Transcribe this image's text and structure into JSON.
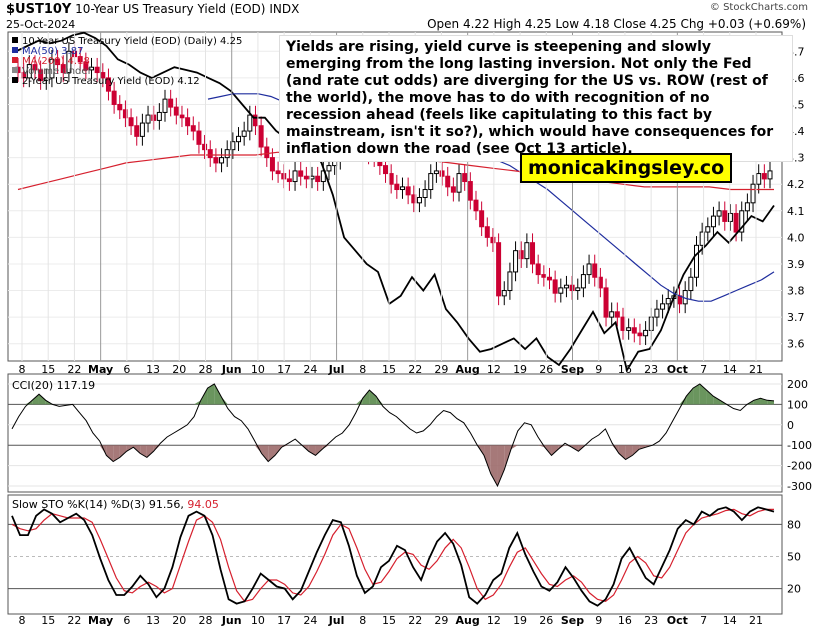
{
  "header": {
    "symbol": "$UST10Y",
    "name": "10-Year US Treasury Yield (EOD)",
    "exchange": "INDX",
    "date": "25-Oct-2024",
    "quote": "Open 4.22  High 4.25  Low 4.18  Close 4.25  Chg +0.03 (+0.69%)",
    "source": "© StockCharts.com"
  },
  "annotation": "Yields are rising, yield curve is steepening and slowly emerging from the long lasting inversion. Not only the Fed (and rate cut odds) are diverging for the US vs. ROW (rest of the world), the move has to do with recognition of no recession ahead (feels like capitulating to this fact by mainstream, isn't it so?), which would have consequences for inflation down the road (see Oct 13 article).",
  "watermark": "monicakingsley.co",
  "colors": {
    "up_candle": "#000000",
    "down_candle": "#cc0033",
    "ma50": "#1f2d9e",
    "ma200": "#d6202e",
    "cci_fill": "#5a8a4c",
    "cci_neg_fill": "#9c6a6a",
    "slowd": "#d6202e"
  },
  "chart_data": [
    {
      "type": "candlestick",
      "title": "10-Year US Treasury Yield (EOD) (Daily) 4.25",
      "legend": [
        {
          "name": "10-Year US Treasury Yield (EOD) (Daily) 4.25",
          "color": "#000000"
        },
        {
          "name": "MA(50) 3.87",
          "color": "#1f2d9e"
        },
        {
          "name": "MA(200) 4.18",
          "color": "#d6202e"
        },
        {
          "name": "Volume undef",
          "color": "#888888"
        },
        {
          "name": "2-Year US Treasury Yield (EOD) 4.12",
          "color": "#000000"
        }
      ],
      "ylim": [
        3.55,
        4.75
      ],
      "yticks": [
        3.6,
        3.7,
        3.8,
        3.9,
        4.0,
        4.1,
        4.2,
        4.3,
        4.4,
        4.5,
        4.6,
        4.7
      ],
      "x_labels": [
        "8",
        "15",
        "22",
        "May",
        "6",
        "13",
        "20",
        "28",
        "Jun",
        "10",
        "17",
        "24",
        "Jul",
        "8",
        "15",
        "22",
        "29",
        "Aug",
        "12",
        "19",
        "26",
        "Sep",
        "9",
        "16",
        "23",
        "Oct",
        "7",
        "14",
        "21"
      ],
      "close": [
        4.62,
        4.6,
        4.65,
        4.63,
        4.59,
        4.6,
        4.67,
        4.65,
        4.62,
        4.7,
        4.68,
        4.66,
        4.63,
        4.64,
        4.62,
        4.6,
        4.55,
        4.5,
        4.48,
        4.45,
        4.42,
        4.38,
        4.43,
        4.46,
        4.44,
        4.47,
        4.52,
        4.49,
        4.46,
        4.45,
        4.42,
        4.4,
        4.35,
        4.33,
        4.3,
        4.28,
        4.3,
        4.33,
        4.36,
        4.38,
        4.4,
        4.46,
        4.42,
        4.34,
        4.3,
        4.25,
        4.24,
        4.22,
        4.21,
        4.25,
        4.23,
        4.22,
        4.23,
        4.21,
        4.25,
        4.27,
        4.29,
        4.33,
        4.39,
        4.46,
        4.41,
        4.36,
        4.31,
        4.3,
        4.27,
        4.24,
        4.2,
        4.18,
        4.19,
        4.16,
        4.13,
        4.15,
        4.18,
        4.24,
        4.25,
        4.23,
        4.19,
        4.17,
        4.24,
        4.21,
        4.14,
        4.1,
        4.04,
        4.0,
        3.98,
        3.78,
        3.8,
        3.87,
        3.95,
        3.92,
        3.98,
        3.9,
        3.86,
        3.85,
        3.84,
        3.79,
        3.81,
        3.82,
        3.8,
        3.81,
        3.86,
        3.9,
        3.85,
        3.81,
        3.7,
        3.72,
        3.7,
        3.65,
        3.66,
        3.64,
        3.63,
        3.65,
        3.7,
        3.73,
        3.75,
        3.77,
        3.78,
        3.75,
        3.8,
        3.85,
        3.97,
        4.02,
        4.04,
        4.08,
        4.1,
        4.06,
        4.09,
        4.02,
        4.1,
        4.13,
        4.2,
        4.24,
        4.22,
        4.25
      ],
      "ma50": [
        4.52,
        4.53,
        4.54,
        4.54,
        4.54,
        4.53,
        4.51,
        4.49,
        4.48,
        4.46,
        4.44,
        4.42,
        4.4,
        4.39,
        4.37,
        4.36,
        4.35,
        4.35,
        4.34,
        4.33,
        4.32,
        4.31,
        4.3,
        4.29,
        4.27,
        4.24,
        4.21,
        4.18,
        4.14,
        4.1,
        4.06,
        4.02,
        3.98,
        3.94,
        3.9,
        3.86,
        3.82,
        3.79,
        3.77,
        3.76,
        3.76,
        3.78,
        3.8,
        3.82,
        3.84,
        3.87
      ],
      "ma200": [
        4.18,
        4.2,
        4.22,
        4.24,
        4.26,
        4.28,
        4.29,
        4.3,
        4.31,
        4.31,
        4.31,
        4.31,
        4.32,
        4.32,
        4.32,
        4.32,
        4.32,
        4.31,
        4.3,
        4.29,
        4.28,
        4.27,
        4.26,
        4.25,
        4.24,
        4.23,
        4.22,
        4.21,
        4.2,
        4.19,
        4.19,
        4.19,
        4.19,
        4.18,
        4.18,
        4.18
      ],
      "yield_2y": [
        4.7,
        4.72,
        4.74,
        4.73,
        4.74,
        4.76,
        4.77,
        4.75,
        4.72,
        4.67,
        4.65,
        4.62,
        4.6,
        4.62,
        4.64,
        4.63,
        4.62,
        4.6,
        4.58,
        4.55,
        4.5,
        4.45,
        4.45,
        4.4,
        4.37,
        4.32,
        4.35,
        4.28,
        4.16,
        4.0,
        3.95,
        3.9,
        3.87,
        3.75,
        3.78,
        3.85,
        3.8,
        3.86,
        3.73,
        3.68,
        3.62,
        3.57,
        3.58,
        3.6,
        3.62,
        3.58,
        3.62,
        3.55,
        3.52,
        3.58,
        3.65,
        3.72,
        3.64,
        3.68,
        3.5,
        3.57,
        3.58,
        3.65,
        3.76,
        3.86,
        3.93,
        3.97,
        4.02,
        3.98,
        4.03,
        4.08,
        4.06,
        4.12
      ]
    },
    {
      "type": "line",
      "title": "CCI(20) 117.19",
      "ylim": [
        -300,
        200
      ],
      "yticks": [
        200,
        100,
        0,
        -100,
        -200,
        -300
      ],
      "reference_lines": [
        100,
        -100
      ],
      "values": [
        -20,
        40,
        90,
        120,
        150,
        120,
        100,
        90,
        95,
        100,
        60,
        20,
        -40,
        -80,
        -150,
        -180,
        -160,
        -130,
        -110,
        -140,
        -160,
        -130,
        -90,
        -60,
        -40,
        -20,
        0,
        40,
        120,
        180,
        200,
        140,
        80,
        40,
        20,
        -20,
        -80,
        -140,
        -180,
        -150,
        -110,
        -90,
        -70,
        -100,
        -130,
        -150,
        -120,
        -90,
        -60,
        -40,
        0,
        60,
        130,
        170,
        140,
        90,
        60,
        40,
        10,
        -20,
        -40,
        -30,
        0,
        40,
        70,
        60,
        30,
        10,
        -40,
        -100,
        -150,
        -240,
        -300,
        -220,
        -120,
        -30,
        10,
        0,
        -60,
        -110,
        -150,
        -120,
        -90,
        -110,
        -130,
        -100,
        -70,
        -50,
        -20,
        -90,
        -140,
        -170,
        -150,
        -120,
        -110,
        -100,
        -80,
        -40,
        20,
        80,
        140,
        180,
        200,
        170,
        140,
        120,
        100,
        80,
        70,
        100,
        120,
        130,
        120,
        117
      ]
    },
    {
      "type": "line",
      "title": "Slow STO %K(14) %D(3) 91.56, 94.05",
      "series_labels": [
        "%K(14)",
        "%D(3)"
      ],
      "k_value": 91.56,
      "d_value": 94.05,
      "ylim": [
        0,
        100
      ],
      "yticks": [
        80,
        50,
        20
      ],
      "k": [
        88,
        70,
        70,
        88,
        94,
        90,
        82,
        86,
        90,
        84,
        70,
        48,
        28,
        14,
        14,
        22,
        32,
        24,
        12,
        20,
        40,
        68,
        88,
        92,
        88,
        70,
        38,
        10,
        6,
        8,
        20,
        34,
        28,
        22,
        20,
        10,
        18,
        36,
        54,
        70,
        84,
        82,
        60,
        32,
        16,
        22,
        40,
        46,
        60,
        56,
        40,
        28,
        48,
        64,
        72,
        62,
        42,
        12,
        6,
        14,
        28,
        34,
        58,
        72,
        52,
        36,
        22,
        18,
        26,
        40,
        30,
        18,
        8,
        4,
        10,
        24,
        48,
        58,
        44,
        30,
        24,
        40,
        56,
        76,
        84,
        80,
        92,
        88,
        94,
        96,
        92,
        84,
        92,
        96,
        94,
        92
      ],
      "d": [
        80,
        76,
        74,
        76,
        84,
        90,
        88,
        86,
        86,
        86,
        82,
        66,
        48,
        30,
        18,
        16,
        22,
        26,
        22,
        16,
        20,
        42,
        64,
        84,
        88,
        82,
        66,
        40,
        18,
        8,
        10,
        20,
        28,
        28,
        24,
        16,
        14,
        22,
        36,
        52,
        70,
        80,
        76,
        58,
        38,
        24,
        26,
        36,
        48,
        54,
        52,
        42,
        38,
        46,
        58,
        66,
        58,
        40,
        20,
        10,
        14,
        24,
        40,
        54,
        58,
        46,
        34,
        24,
        22,
        28,
        32,
        26,
        16,
        10,
        8,
        14,
        28,
        44,
        50,
        44,
        32,
        30,
        40,
        56,
        72,
        80,
        86,
        88,
        90,
        93,
        94,
        90,
        88,
        92,
        94,
        94
      ]
    }
  ]
}
